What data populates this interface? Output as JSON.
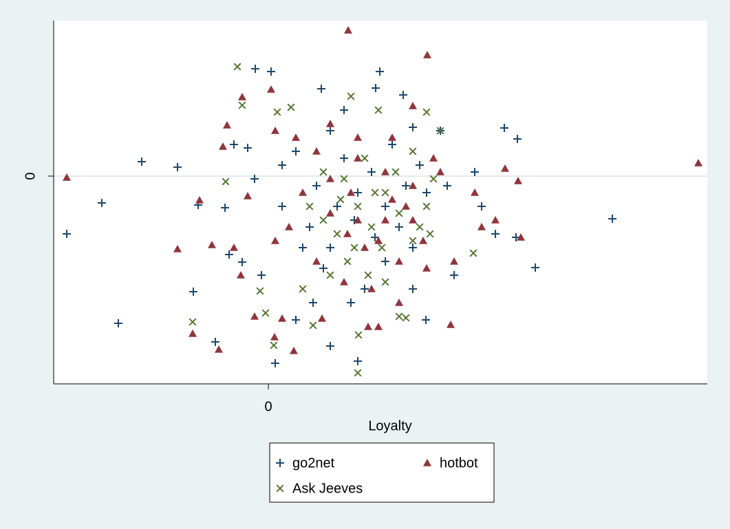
{
  "chart_data": {
    "type": "scatter",
    "xlabel": "Loyalty",
    "xlim": [
      -312,
      638
    ],
    "ylim": [
      -302,
      226
    ],
    "xticks": [
      0
    ],
    "yticks": [
      0
    ],
    "grid": true,
    "legend": "bottom",
    "series": [
      {
        "name": "go2net",
        "color": "#1a476f",
        "marker": "plus",
        "x": [
          -293,
          -242,
          -184,
          -132,
          -218,
          -109,
          -77,
          -19,
          4,
          10,
          90,
          130,
          162,
          77,
          156,
          196,
          343,
          362,
          500,
          388,
          229,
          -102,
          -63,
          -57,
          -38,
          -10,
          40,
          65,
          210,
          270,
          310,
          330,
          360,
          300,
          250,
          210,
          110,
          90,
          40,
          20,
          -30,
          -50,
          -20,
          20,
          60,
          90,
          130,
          150,
          170,
          190,
          210,
          230,
          260,
          140,
          120,
          80,
          50,
          110,
          180,
          220,
          170,
          125,
          100,
          200,
          155,
          70
        ],
        "values": [
          -84,
          -39,
          21,
          13,
          -214,
          -168,
          -241,
          156,
          152,
          -272,
          -247,
          -269,
          152,
          127,
          128,
          118,
          70,
          54,
          -62,
          -133,
          -209,
          -42,
          -46,
          -114,
          -125,
          -144,
          -209,
          -184,
          -164,
          -144,
          -44,
          -84,
          -89,
          6,
          66,
          71,
          96,
          66,
          36,
          16,
          41,
          46,
          -4,
          -44,
          -74,
          -104,
          -24,
          6,
          -44,
          -74,
          -104,
          -24,
          -14,
          -164,
          -184,
          -134,
          -104,
          26,
          46,
          16,
          -124,
          -64,
          -44,
          -14,
          -89,
          -14
        ]
      },
      {
        "name": "hotbot",
        "color": "#90353b",
        "marker": "triangle",
        "x": [
          -293,
          116,
          231,
          -38,
          4,
          625,
          -132,
          -82,
          -110,
          -72,
          37,
          9,
          265,
          367,
          363,
          344,
          210,
          -60,
          -66,
          -100,
          -30,
          -20,
          20,
          78,
          145,
          160,
          190,
          230,
          270,
          310,
          330,
          250,
          210,
          170,
          130,
          90,
          50,
          30,
          10,
          70,
          110,
          150,
          190,
          210,
          170,
          130,
          90,
          160,
          200,
          120,
          70,
          40,
          10,
          -50,
          -40,
          90,
          130,
          180,
          240,
          300,
          225,
          140,
          180,
          115
        ],
        "values": [
          -2,
          212,
          176,
          115,
          126,
          19,
          -106,
          -100,
          -229,
          -252,
          -254,
          -234,
          -216,
          -89,
          -7,
          11,
          102,
          74,
          43,
          -35,
          -29,
          -204,
          -207,
          -207,
          -219,
          -219,
          -184,
          -134,
          -124,
          -74,
          -64,
          6,
          -14,
          6,
          26,
          -4,
          -24,
          -74,
          -94,
          -124,
          -154,
          -164,
          -124,
          -64,
          -64,
          -64,
          -54,
          -94,
          -44,
          -24,
          36,
          56,
          66,
          -104,
          -144,
          76,
          56,
          56,
          26,
          -24,
          -94,
          -104,
          -34,
          -84
        ]
      },
      {
        "name": "Ask Jeeves",
        "color": "#55752f",
        "marker": "x",
        "x": [
          -45,
          -38,
          13,
          33,
          -62,
          -110,
          -12,
          -4,
          8,
          65,
          131,
          130,
          120,
          160,
          230,
          298,
          250,
          190,
          200,
          60,
          80,
          100,
          110,
          130,
          150,
          170,
          190,
          210,
          230,
          240,
          115,
          145,
          170,
          90,
          50,
          80,
          140,
          210,
          220,
          165,
          125,
          155,
          105,
          185,
          235
        ],
        "values": [
          159,
          103,
          93,
          100,
          -8,
          -212,
          -167,
          -199,
          -246,
          -217,
          -231,
          -286,
          116,
          96,
          93,
          -112,
          66,
          -204,
          -206,
          -44,
          -64,
          -84,
          -4,
          -44,
          -74,
          -24,
          -54,
          -94,
          -44,
          -4,
          -124,
          -144,
          -154,
          -144,
          -164,
          6,
          26,
          36,
          -74,
          -104,
          -104,
          -24,
          -34,
          6,
          -84
        ]
      }
    ]
  }
}
